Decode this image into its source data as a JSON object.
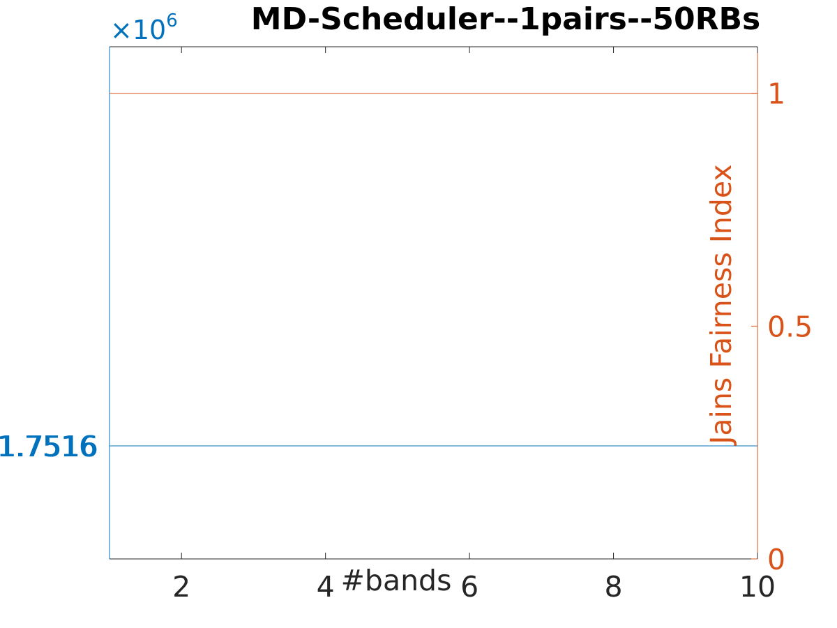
{
  "chart_data": {
    "type": "line",
    "title": "MD-Scheduler--1pairs--50RBs",
    "xlabel": "#bands",
    "ylabel_left": "",
    "ylabel_right": "Jains Fairness Index",
    "left_exponent_base": "×10",
    "left_exponent_power": "6",
    "xlim": [
      1,
      10
    ],
    "ylim_right": [
      0,
      1.1
    ],
    "x_ticks": [
      2,
      4,
      6,
      8,
      10
    ],
    "left_ticks": [
      "1.7516",
      "1.7516"
    ],
    "right_ticks": [
      0,
      0.5,
      1
    ],
    "grid": false,
    "series": [
      {
        "axis": "left",
        "color": "#0072bd",
        "x": [
          1,
          2,
          3,
          4,
          5,
          6,
          7,
          8,
          9,
          10
        ],
        "y": [
          1.7516,
          1.7516,
          1.7516,
          1.7516,
          1.7516,
          1.7516,
          1.7516,
          1.7516,
          1.7516,
          1.7516
        ]
      },
      {
        "axis": "right",
        "color": "#d95319",
        "x": [
          1,
          2,
          3,
          4,
          5,
          6,
          7,
          8,
          9,
          10
        ],
        "y": [
          1,
          1,
          1,
          1,
          1,
          1,
          1,
          1,
          1,
          1
        ]
      }
    ],
    "colors": {
      "axis_left": "#0072bd",
      "axis_right": "#d95319",
      "axis_text": "#262626"
    }
  }
}
